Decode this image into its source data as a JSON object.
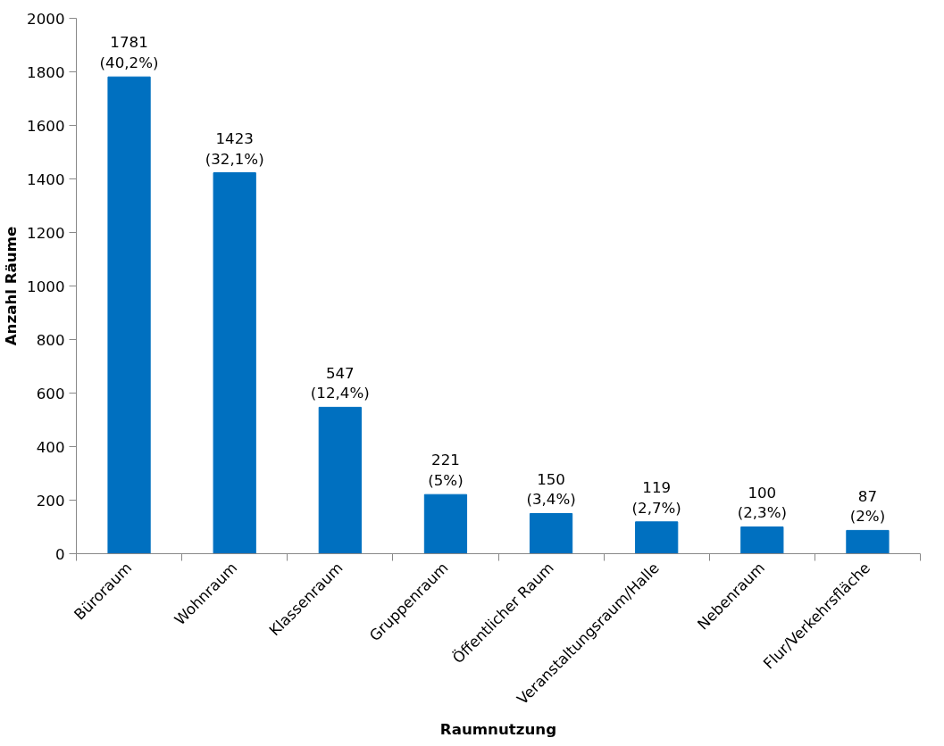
{
  "chart_data": {
    "type": "bar",
    "xlabel": "Raumnutzung",
    "ylabel": "Anzahl Räume",
    "categories": [
      "Büroraum",
      "Wohnraum",
      "Klassenraum",
      "Gruppenraum",
      "Öffentlicher Raum",
      "Veranstaltungsraum/Halle",
      "Nebenraum",
      "Flur/Verkehrsfläche"
    ],
    "values": [
      1781,
      1423,
      547,
      221,
      150,
      119,
      100,
      87
    ],
    "value_labels": [
      "1781\n(40,2%)",
      "1423\n(32,1%)",
      "547\n(12,4%)",
      "221\n(5%)",
      "150\n(3,4%)",
      "119\n(2,7%)",
      "100\n(2,3%)",
      "87\n(2%)"
    ],
    "color": "#0070c0",
    "ylim": [
      0,
      2000
    ],
    "yticks": [
      0,
      200,
      400,
      600,
      800,
      1000,
      1200,
      1400,
      1600,
      1800,
      2000
    ],
    "grid": false
  }
}
